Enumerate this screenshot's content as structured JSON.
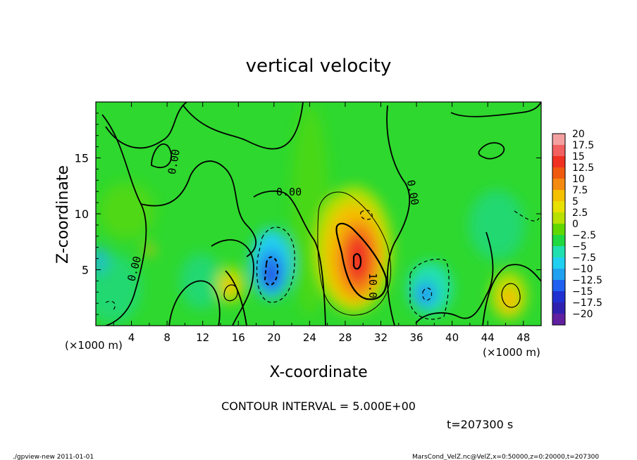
{
  "chart_data": {
    "type": "heatmap",
    "title": "vertical velocity",
    "xlabel": "X-coordinate",
    "ylabel": "Z-coordinate",
    "x_unit_label": "(×1000 m)",
    "y_unit_label": "(×1000 m)",
    "xlim": [
      0,
      50
    ],
    "ylim": [
      0,
      20
    ],
    "x_ticks": [
      4,
      8,
      12,
      16,
      20,
      24,
      28,
      32,
      36,
      40,
      44,
      48
    ],
    "y_ticks": [
      5,
      10,
      15
    ],
    "colorbar": {
      "labels": [
        "20",
        "17.5",
        "15",
        "12.5",
        "10",
        "7.5",
        "5",
        "2.5",
        "0",
        "−2.5",
        "−5",
        "−7.5",
        "−10",
        "−12.5",
        "−15",
        "−17.5",
        "−20"
      ],
      "levels": [
        20,
        17.5,
        15,
        12.5,
        10,
        7.5,
        5,
        2.5,
        0,
        -2.5,
        -5,
        -7.5,
        -10,
        -12.5,
        -15,
        -17.5,
        -20
      ],
      "colors": [
        "#f4a0a0",
        "#f26060",
        "#f03020",
        "#f05a10",
        "#f48a10",
        "#f4c000",
        "#e8e000",
        "#b8e000",
        "#60d800",
        "#20d840",
        "#20e0b0",
        "#20d0f0",
        "#20a0f0",
        "#2060f0",
        "#2030d0",
        "#3020b0",
        "#6020a0"
      ]
    },
    "features": [
      {
        "kind": "updraft",
        "x": 29.2,
        "z": 6.0,
        "peak": 15
      },
      {
        "kind": "updraft",
        "x": 15.3,
        "z": 3.3,
        "peak": 7
      },
      {
        "kind": "updraft",
        "x": 46.0,
        "z": 2.5,
        "peak": 7
      },
      {
        "kind": "updraft",
        "x": 5.8,
        "z": 6.5,
        "peak": 5
      },
      {
        "kind": "downdraft",
        "x": 20.0,
        "z": 5.0,
        "peak": -12
      },
      {
        "kind": "downdraft",
        "x": 37.0,
        "z": 2.8,
        "peak": -9
      }
    ],
    "contour_labels": [
      "0.00",
      "0.00",
      "0.00",
      "0.00",
      "10.0"
    ],
    "contour_interval_text": "CONTOUR INTERVAL = 5.000E+00",
    "time_text": "t=207300 s"
  },
  "footer": {
    "left": "./gpview-new   2011-01-01",
    "right": "MarsCond_VelZ.nc@VelZ,x=0:50000,z=0:20000,t=207300"
  }
}
